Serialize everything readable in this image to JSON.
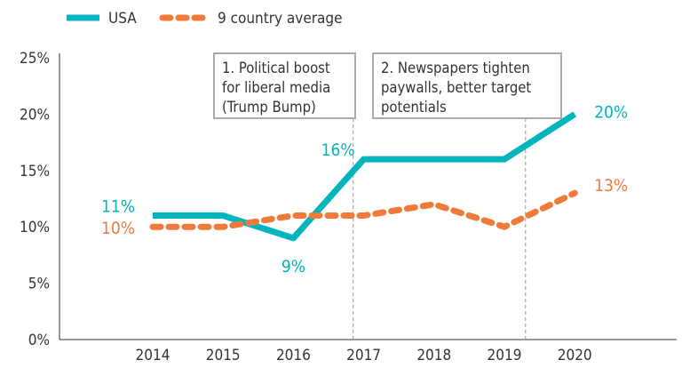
{
  "chart_data": {
    "type": "line",
    "title": "",
    "xlabel": "",
    "ylabel": "",
    "x": [
      "2014",
      "2015",
      "2016",
      "2017",
      "2018",
      "2019",
      "2020"
    ],
    "ylim": [
      0,
      25
    ],
    "yticks": [
      "0%",
      "5%",
      "10%",
      "15%",
      "20%",
      "25%"
    ],
    "ytick_values": [
      0,
      5,
      10,
      15,
      20,
      25
    ],
    "legend_position": "top-left",
    "series": [
      {
        "name": "USA",
        "color": "#00b5bd",
        "style": "solid",
        "values": [
          11,
          11,
          9,
          16,
          16,
          16,
          20
        ]
      },
      {
        "name": "9 country average",
        "color": "#f07a3a",
        "style": "dashed",
        "values": [
          10,
          10,
          11,
          11,
          12,
          10,
          13
        ]
      }
    ],
    "data_labels": [
      {
        "series": 0,
        "index": 0,
        "text": "11%"
      },
      {
        "series": 1,
        "index": 0,
        "text": "10%"
      },
      {
        "series": 0,
        "index": 2,
        "text": "9%"
      },
      {
        "series": 0,
        "index": 3,
        "text": "16%"
      },
      {
        "series": 0,
        "index": 6,
        "text": "20%"
      },
      {
        "series": 1,
        "index": 6,
        "text": "13%"
      }
    ],
    "annotations": [
      {
        "x": 2016.85,
        "lines": [
          "1. Political boost",
          "for liberal media",
          "(Trump Bump)"
        ]
      },
      {
        "x": 2019.3,
        "lines": [
          "2. Newspapers tighten",
          "paywalls, better target",
          "potentials"
        ]
      }
    ]
  }
}
